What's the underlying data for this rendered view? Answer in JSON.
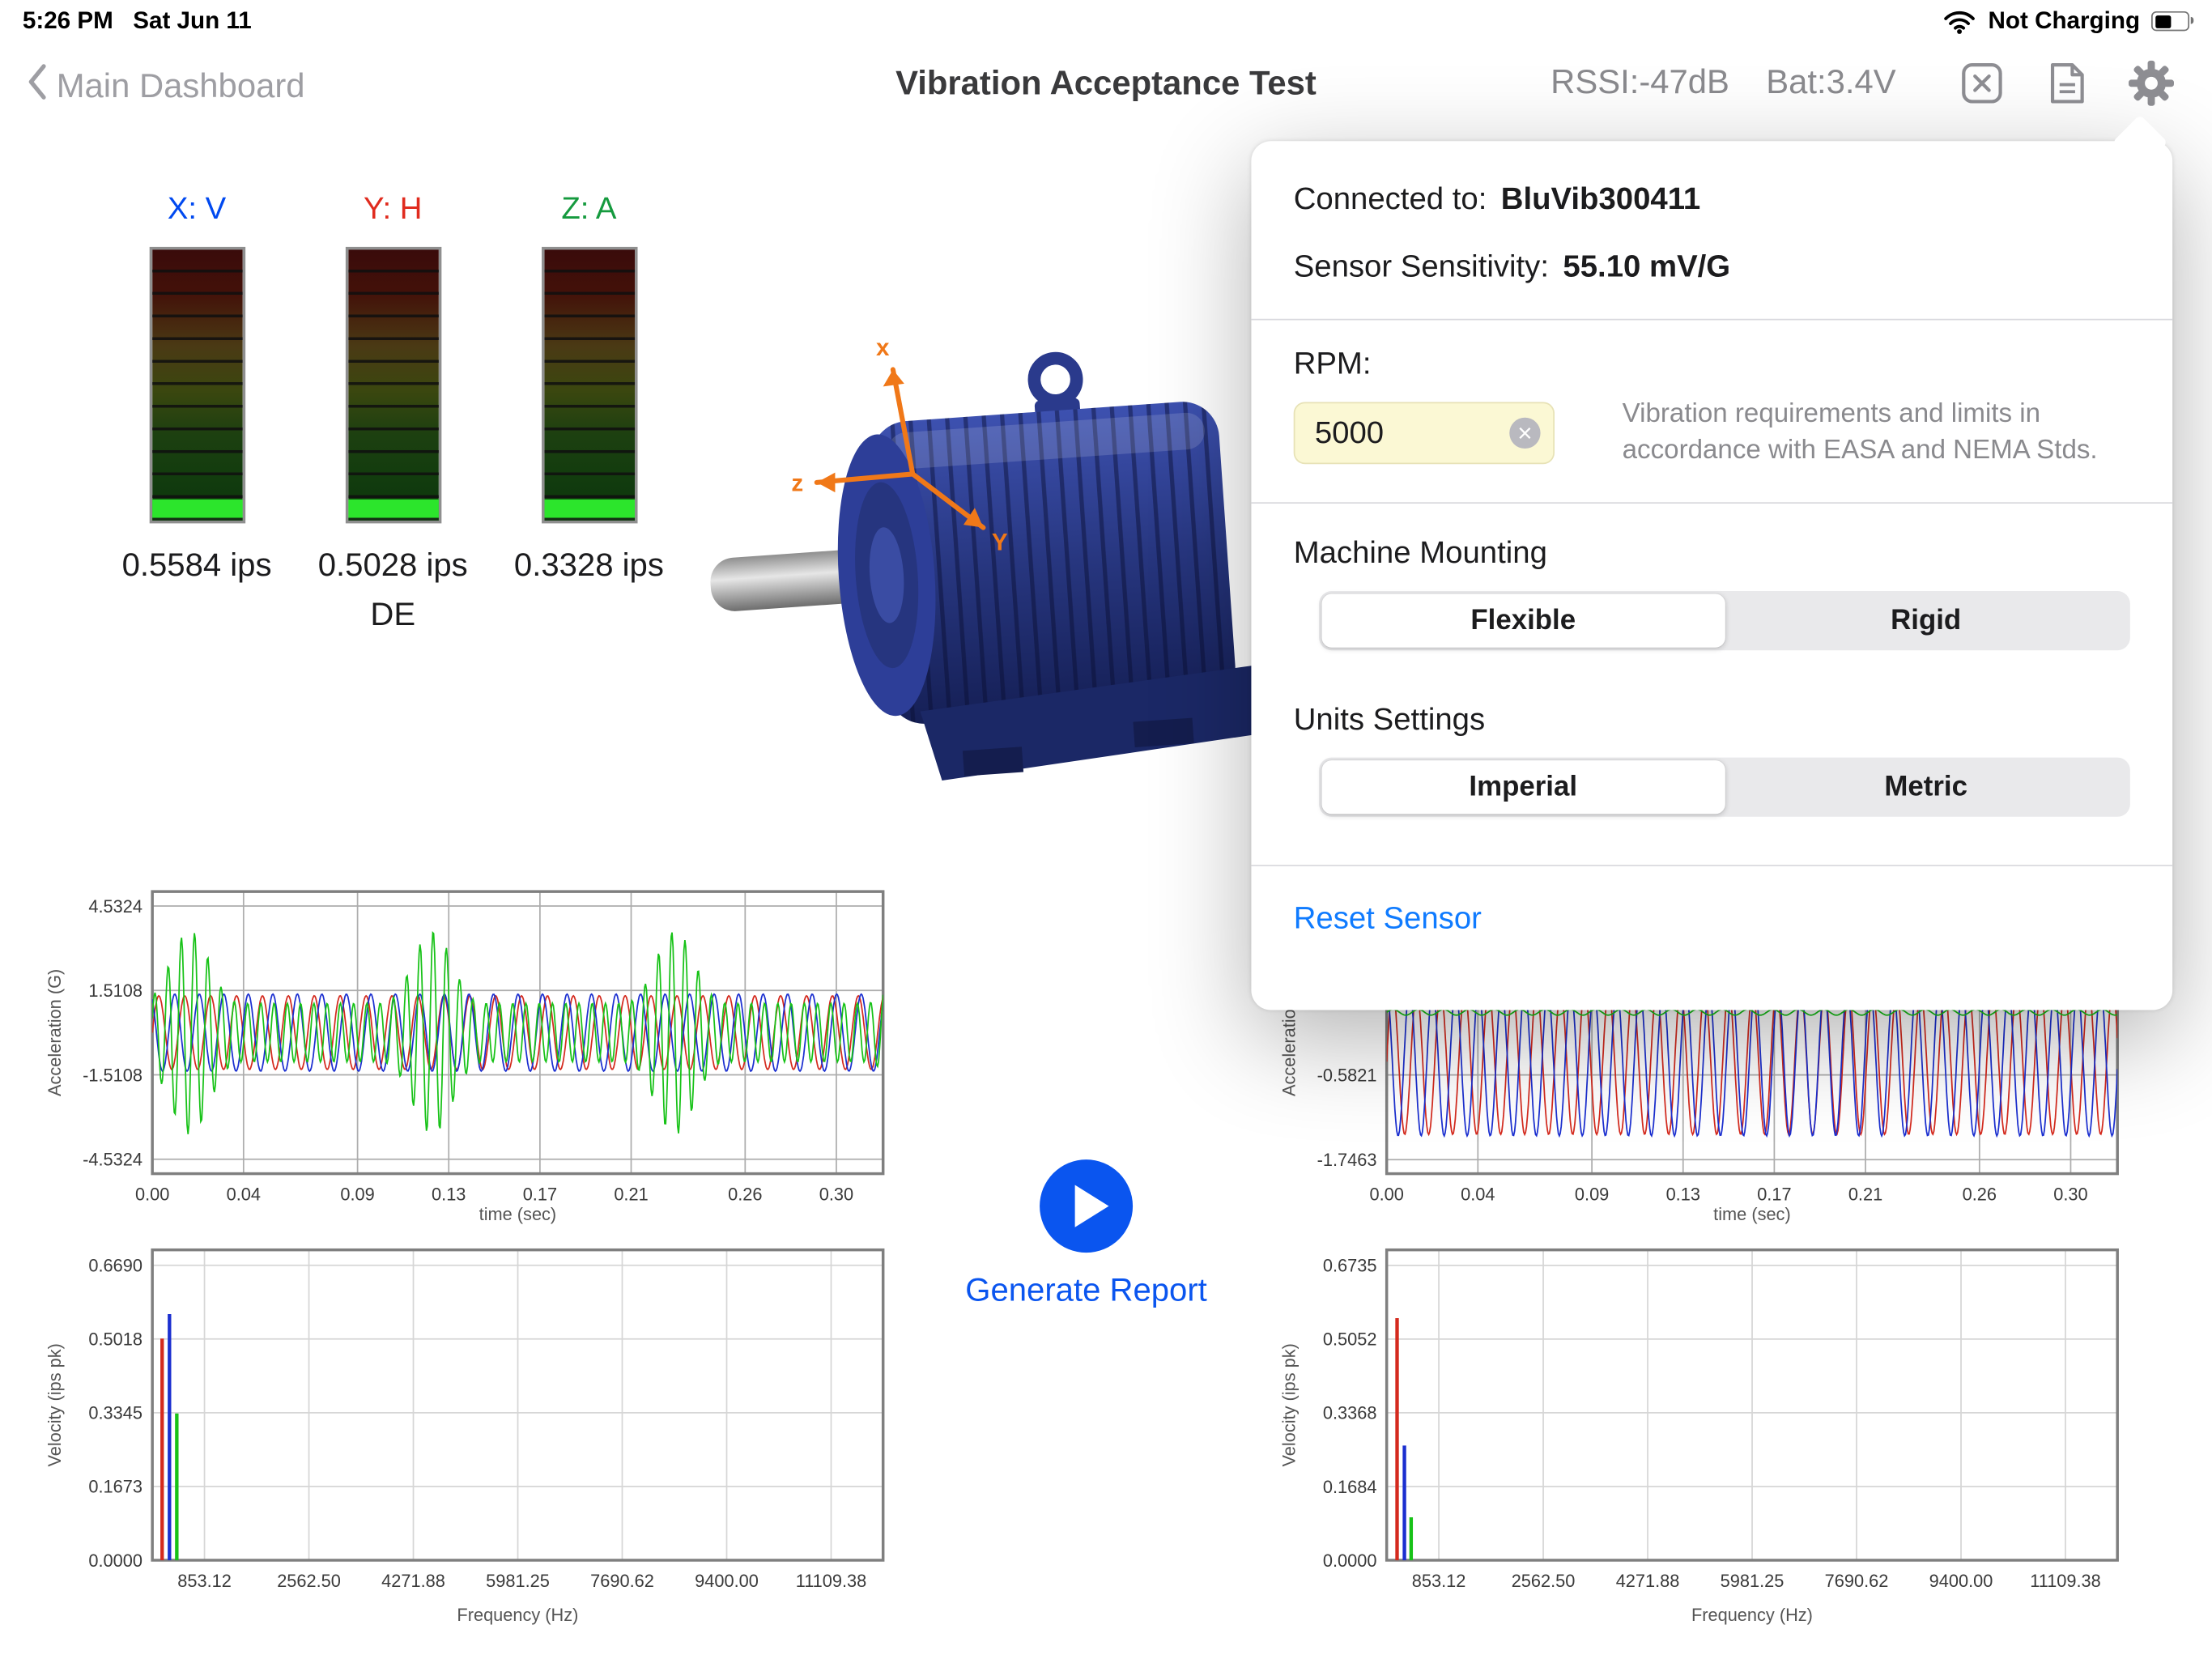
{
  "status": {
    "time": "5:26 PM",
    "date": "Sat Jun 11",
    "power": "Not Charging"
  },
  "nav": {
    "back": "Main Dashboard",
    "title": "Vibration Acceptance Test",
    "rssi": "RSSI:-47dB",
    "bat": "Bat:3.4V"
  },
  "meters": [
    {
      "axis": "X: V",
      "color": "#0049f0",
      "value": "0.5584 ips",
      "lit": 8
    },
    {
      "axis": "Y: H",
      "color": "#e02b1e",
      "value": "0.5028 ips",
      "lit": 8
    },
    {
      "axis": "Z: A",
      "color": "#159a3e",
      "value": "0.3328 ips",
      "lit": 8
    }
  ],
  "meter_footer": "DE",
  "motor_axes": {
    "x": "x",
    "y": "Y",
    "z": "z"
  },
  "popover": {
    "connected_label": "Connected to:",
    "connected_value": "BluVib300411",
    "sensitivity_label": "Sensor Sensitivity:",
    "sensitivity_value": "55.10 mV/G",
    "rpm_label": "RPM:",
    "rpm_value": "5000",
    "rpm_note": "Vibration requirements and limits in accordance with EASA and NEMA Stds.",
    "mounting_label": "Machine Mounting",
    "mounting_options": [
      "Flexible",
      "Rigid"
    ],
    "mounting_selected": 0,
    "units_label": "Units Settings",
    "units_options": [
      "Imperial",
      "Metric"
    ],
    "units_selected": 0,
    "reset": "Reset Sensor"
  },
  "actions": {
    "generate_report": "Generate Report"
  },
  "charts": {
    "tw_left": {
      "type": "wave",
      "xlabel": "time (sec)",
      "ylabel": "Acceleration (G)",
      "xlim": [
        0,
        0.3205
      ],
      "ylim": [
        -5.05,
        5.05
      ],
      "margins": [
        12,
        4,
        38,
        78
      ],
      "grid": "#adadad",
      "xticks": [
        {
          "v": 0,
          "l": "0.00"
        },
        {
          "v": 0.04,
          "l": "0.04"
        },
        {
          "v": 0.09,
          "l": "0.09"
        },
        {
          "v": 0.13,
          "l": "0.13"
        },
        {
          "v": 0.17,
          "l": "0.17"
        },
        {
          "v": 0.21,
          "l": "0.21"
        },
        {
          "v": 0.26,
          "l": "0.26"
        },
        {
          "v": 0.3,
          "l": "0.30"
        }
      ],
      "yticks": [
        {
          "v": 4.5324,
          "l": "4.5324"
        },
        {
          "v": 1.5108,
          "l": "1.5108"
        },
        {
          "v": -1.5108,
          "l": "-1.5108"
        },
        {
          "v": -4.5324,
          "l": "-4.5324"
        }
      ],
      "series": [
        {
          "color": "#d42a1e",
          "base": 0,
          "amp": 1.32,
          "freq": 88,
          "phase": 0
        },
        {
          "color": "#1b2fd0",
          "base": 0,
          "amp": 1.38,
          "freq": 93,
          "phase": 2.1
        },
        {
          "color": "#17c217",
          "base": 0,
          "amp": 1.05,
          "freq": 172,
          "phase": 0.4,
          "burst": {
            "amp": 2.6,
            "freq": 9.4,
            "pow": 4,
            "phase": 0.6
          }
        }
      ]
    },
    "tw_right": {
      "type": "wave",
      "xlabel": "time (sec)",
      "ylabel": "Acceleration (G)",
      "xlim": [
        0,
        0.3205
      ],
      "ylim": [
        -1.94,
        1.94
      ],
      "margins": [
        12,
        4,
        38,
        78
      ],
      "grid": "#adadad",
      "xticks": [
        {
          "v": 0,
          "l": "0.00"
        },
        {
          "v": 0.04,
          "l": "0.04"
        },
        {
          "v": 0.09,
          "l": "0.09"
        },
        {
          "v": 0.13,
          "l": "0.13"
        },
        {
          "v": 0.17,
          "l": "0.17"
        },
        {
          "v": 0.21,
          "l": "0.21"
        },
        {
          "v": 0.26,
          "l": "0.26"
        },
        {
          "v": 0.3,
          "l": "0.30"
        }
      ],
      "yticks": [
        {
          "v": 1.7463,
          "l": ""
        },
        {
          "v": 0.5821,
          "l": ""
        },
        {
          "v": -0.5821,
          "l": "-0.5821"
        },
        {
          "v": -1.7463,
          "l": "-1.7463"
        }
      ],
      "series": [
        {
          "color": "#d42a1e",
          "base": -0.4,
          "amp": 1.0,
          "freq": 95,
          "phase": 0
        },
        {
          "color": "#1b2fd0",
          "base": -0.4,
          "amp": 1.02,
          "freq": 99,
          "phase": 1.6
        },
        {
          "color": "#17c217",
          "base": 0.28,
          "amp": 0.04,
          "freq": 90,
          "phase": 0
        }
      ]
    },
    "sp_left": {
      "type": "spectrum",
      "xlabel": "Frequency (Hz)",
      "ylabel": "Velocity (ips pk)",
      "xlim": [
        0,
        11960
      ],
      "ylim": [
        0,
        0.704
      ],
      "margins": [
        10,
        4,
        48,
        78
      ],
      "grid": "#d6d6d6",
      "xticks": [
        {
          "v": 853.12,
          "l": "853.12"
        },
        {
          "v": 2562.5,
          "l": "2562.50"
        },
        {
          "v": 4271.88,
          "l": "4271.88"
        },
        {
          "v": 5981.25,
          "l": "5981.25"
        },
        {
          "v": 7690.62,
          "l": "7690.62"
        },
        {
          "v": 9400,
          "l": "9400.00"
        },
        {
          "v": 11109.38,
          "l": "11109.38"
        }
      ],
      "yticks": [
        {
          "v": 0.669,
          "l": "0.6690"
        },
        {
          "v": 0.5018,
          "l": "0.5018"
        },
        {
          "v": 0.3345,
          "l": "0.3345"
        },
        {
          "v": 0.1673,
          "l": "0.1673"
        },
        {
          "v": 0,
          "l": "0.0000"
        }
      ],
      "peaks": [
        {
          "f": 160,
          "v": 0.5028,
          "color": "#d42a1e"
        },
        {
          "f": 280,
          "v": 0.5584,
          "color": "#1b2fd0"
        },
        {
          "f": 400,
          "v": 0.3328,
          "color": "#17c217"
        }
      ]
    },
    "sp_right": {
      "type": "spectrum",
      "xlabel": "Frequency (Hz)",
      "ylabel": "Velocity (ips pk)",
      "xlim": [
        0,
        11960
      ],
      "ylim": [
        0,
        0.709
      ],
      "margins": [
        10,
        4,
        48,
        78
      ],
      "grid": "#d6d6d6",
      "xticks": [
        {
          "v": 853.12,
          "l": "853.12"
        },
        {
          "v": 2562.5,
          "l": "2562.50"
        },
        {
          "v": 4271.88,
          "l": "4271.88"
        },
        {
          "v": 5981.25,
          "l": "5981.25"
        },
        {
          "v": 7690.62,
          "l": "7690.62"
        },
        {
          "v": 9400,
          "l": "9400.00"
        },
        {
          "v": 11109.38,
          "l": "11109.38"
        }
      ],
      "yticks": [
        {
          "v": 0.6735,
          "l": "0.6735"
        },
        {
          "v": 0.5052,
          "l": "0.5052"
        },
        {
          "v": 0.3368,
          "l": "0.3368"
        },
        {
          "v": 0.1684,
          "l": "0.1684"
        },
        {
          "v": 0,
          "l": "0.0000"
        }
      ],
      "peaks": [
        {
          "f": 170,
          "v": 0.553,
          "color": "#d42a1e"
        },
        {
          "f": 290,
          "v": 0.262,
          "color": "#1b2fd0"
        },
        {
          "f": 400,
          "v": 0.098,
          "color": "#17c217"
        }
      ]
    }
  }
}
